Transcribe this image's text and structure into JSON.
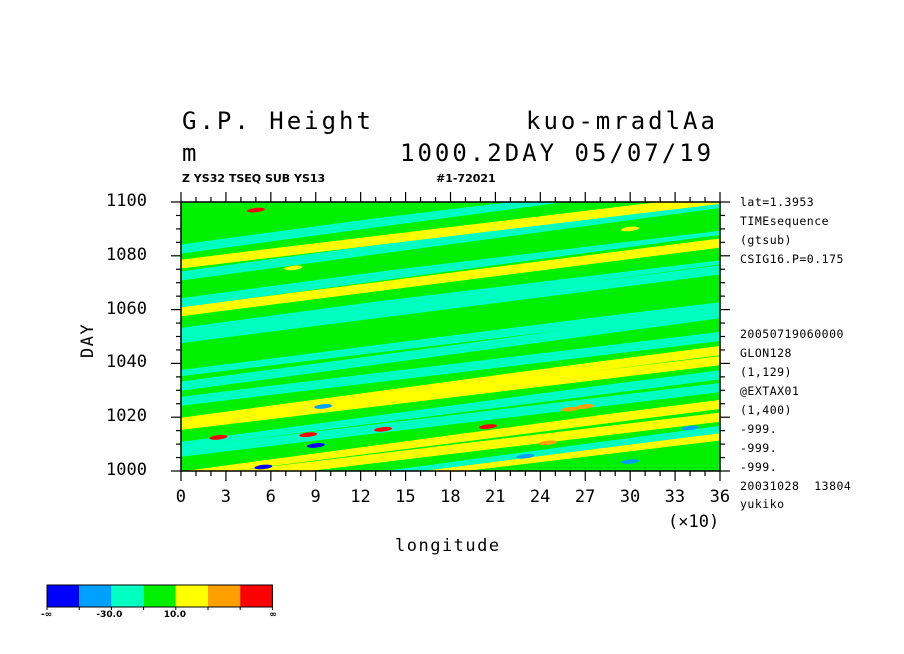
{
  "header": {
    "title_left": "G.P. Height",
    "title_right": "kuo-mradlAa",
    "unit": "m",
    "level_date": "1000.2DAY 05/07/19",
    "subtitle_left": "Z YS32 TSEQ SUB YS13",
    "subtitle_right": "#1-72021"
  },
  "side_info": [
    "lat=1.3953",
    "TIMEsequence",
    "(gtsub)",
    "CSIG16.P=0.175",
    "",
    "",
    "",
    "20050719060000",
    "GLON128",
    "(1,129)",
    "@EXTAX01",
    "(1,400)",
    "-999.",
    "-999.",
    "-999.",
    "20031028  13804",
    "yukiko"
  ],
  "axes": {
    "xlabel": "longitude",
    "ylabel": "DAY",
    "x_multiplier": "(×10)"
  },
  "colorbar": {
    "colors": [
      "#0000ff",
      "#00a0ff",
      "#00ffc0",
      "#00f000",
      "#ffff00",
      "#ffa000",
      "#ff0000"
    ],
    "labels": [
      {
        "text": "-∞",
        "index": 0
      },
      {
        "text": "-30.0",
        "index": 2
      },
      {
        "text": "10.0",
        "index": 4
      },
      {
        "text": "∞",
        "index": 7
      }
    ]
  },
  "chart_data": {
    "type": "heatmap",
    "xlabel": "longitude",
    "ylabel": "DAY",
    "xlim": [
      0,
      36
    ],
    "ylim": [
      1000,
      1100
    ],
    "x_ticks": [
      "0",
      "3",
      "6",
      "9",
      "12",
      "15",
      "18",
      "21",
      "24",
      "27",
      "30",
      "33",
      "36"
    ],
    "y_ticks": [
      "1000",
      "1020",
      "1040",
      "1060",
      "1080",
      "1100"
    ],
    "x_tick_values": [
      0,
      3,
      6,
      9,
      12,
      15,
      18,
      21,
      24,
      27,
      30,
      33,
      36
    ],
    "y_tick_values": [
      1000,
      1020,
      1040,
      1060,
      1080,
      1100
    ],
    "levels": [
      -50,
      -30,
      -10,
      10,
      30,
      50
    ],
    "bands": [
      {
        "day": 1001,
        "color": "#ffff00"
      },
      {
        "day": 1003,
        "color": "#00ffc0"
      },
      {
        "day": 1005,
        "color": "#00f000"
      },
      {
        "day": 1008,
        "color": "#ffff00"
      },
      {
        "day": 1012,
        "color": "#ffff00"
      },
      {
        "day": 1015,
        "color": "#00f000"
      },
      {
        "day": 1019,
        "color": "#00ffc0"
      },
      {
        "day": 1023,
        "color": "#00ffc0"
      },
      {
        "day": 1026,
        "color": "#00f000"
      },
      {
        "day": 1029,
        "color": "#ffff00"
      },
      {
        "day": 1032,
        "color": "#ffff00"
      },
      {
        "day": 1035,
        "color": "#00f000"
      },
      {
        "day": 1038,
        "color": "#00ffc0"
      },
      {
        "day": 1042,
        "color": "#00f000"
      },
      {
        "day": 1045,
        "color": "#00ffc0"
      },
      {
        "day": 1049,
        "color": "#00ffc0"
      },
      {
        "day": 1052,
        "color": "#00f000"
      },
      {
        "day": 1055,
        "color": "#00f000"
      },
      {
        "day": 1058,
        "color": "#00f000"
      },
      {
        "day": 1062,
        "color": "#00ffc0"
      },
      {
        "day": 1065,
        "color": "#00ffc0"
      },
      {
        "day": 1068,
        "color": "#00f000"
      },
      {
        "day": 1072,
        "color": "#ffff00"
      },
      {
        "day": 1076,
        "color": "#00ffc0"
      },
      {
        "day": 1079,
        "color": "#00f000"
      },
      {
        "day": 1083,
        "color": "#00f000"
      },
      {
        "day": 1086,
        "color": "#00ffc0"
      },
      {
        "day": 1089,
        "color": "#ffff00"
      },
      {
        "day": 1093,
        "color": "#00f000"
      },
      {
        "day": 1096,
        "color": "#00ffc0"
      },
      {
        "day": 1099,
        "color": "#00f000"
      }
    ],
    "features": [
      {
        "x": 2.5,
        "day": 1012.5,
        "color": "#ff0000"
      },
      {
        "x": 8.5,
        "day": 1013.5,
        "color": "#ff0000"
      },
      {
        "x": 13.5,
        "day": 1015.5,
        "color": "#ff0000"
      },
      {
        "x": 20.5,
        "day": 1016.5,
        "color": "#ff0000"
      },
      {
        "x": 27.0,
        "day": 1024.0,
        "color": "#ffa000"
      },
      {
        "x": 26.0,
        "day": 1023.0,
        "color": "#ffa000"
      },
      {
        "x": 24.5,
        "day": 1010.5,
        "color": "#ffa000"
      },
      {
        "x": 9.0,
        "day": 1009.5,
        "color": "#0000ff"
      },
      {
        "x": 5.5,
        "day": 1001.5,
        "color": "#0000ff"
      },
      {
        "x": 23.0,
        "day": 1005.5,
        "color": "#00a0ff"
      },
      {
        "x": 30.0,
        "day": 1003.5,
        "color": "#00a0ff"
      },
      {
        "x": 34.0,
        "day": 1016.0,
        "color": "#00a0ff"
      },
      {
        "x": 9.5,
        "day": 1024.0,
        "color": "#00a0ff"
      },
      {
        "x": 7.5,
        "day": 1075.5,
        "color": "#ffff00"
      },
      {
        "x": 5.0,
        "day": 1097.0,
        "color": "#ff0000"
      },
      {
        "x": 30.0,
        "day": 1090.0,
        "color": "#ffff00"
      }
    ]
  }
}
